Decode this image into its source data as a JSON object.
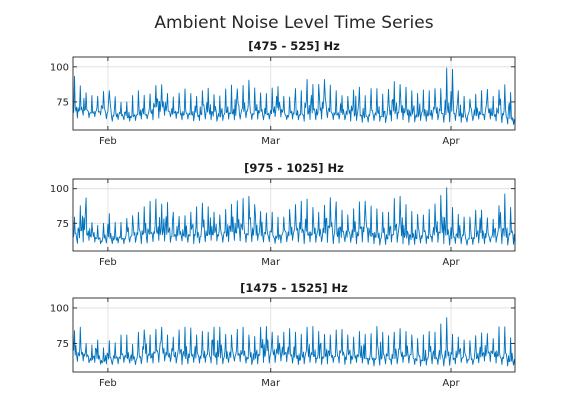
{
  "title": "Ambient Noise Level Time Series",
  "chart_data": [
    {
      "type": "line",
      "title": "[475 - 525]  Hz",
      "xlim": [
        "2021-01-26",
        "2021-04-12"
      ],
      "ylim": [
        55,
        107
      ],
      "yticks": [
        75,
        100
      ],
      "xticks": [
        {
          "date": "2021-02-01",
          "label": "Feb"
        },
        {
          "date": "2021-03-01",
          "label": "Mar"
        },
        {
          "date": "2021-04-01",
          "label": "Apr"
        }
      ],
      "grid": true,
      "series": [
        {
          "color": "#0072bd",
          "x": [
            "2021-01-26",
            "2021-01-27",
            "2021-01-28",
            "2021-01-29",
            "2021-01-30",
            "2021-01-31",
            "2021-02-01",
            "2021-02-02",
            "2021-02-03",
            "2021-02-04",
            "2021-02-05",
            "2021-02-06",
            "2021-02-07",
            "2021-02-08",
            "2021-02-09",
            "2021-02-10",
            "2021-02-11",
            "2021-02-12",
            "2021-02-13",
            "2021-02-14",
            "2021-02-15",
            "2021-02-16",
            "2021-02-17",
            "2021-02-18",
            "2021-02-19",
            "2021-02-20",
            "2021-02-21",
            "2021-02-22",
            "2021-02-23",
            "2021-02-24",
            "2021-02-25",
            "2021-02-26",
            "2021-02-27",
            "2021-02-28",
            "2021-03-01",
            "2021-03-02",
            "2021-03-03",
            "2021-03-04",
            "2021-03-05",
            "2021-03-06",
            "2021-03-07",
            "2021-03-08",
            "2021-03-09",
            "2021-03-10",
            "2021-03-11",
            "2021-03-12",
            "2021-03-13",
            "2021-03-14",
            "2021-03-15",
            "2021-03-16",
            "2021-03-17",
            "2021-03-18",
            "2021-03-19",
            "2021-03-20",
            "2021-03-21",
            "2021-03-22",
            "2021-03-23",
            "2021-03-24",
            "2021-03-25",
            "2021-03-26",
            "2021-03-27",
            "2021-03-28",
            "2021-03-29",
            "2021-03-30",
            "2021-03-31",
            "2021-04-01",
            "2021-04-02",
            "2021-04-03",
            "2021-04-04",
            "2021-04-05",
            "2021-04-06",
            "2021-04-07",
            "2021-04-08",
            "2021-04-09",
            "2021-04-10",
            "2021-04-11",
            "2021-04-12"
          ],
          "min": [
            62,
            64,
            66,
            63,
            65,
            66,
            62,
            61,
            63,
            62,
            61,
            62,
            63,
            63,
            62,
            64,
            66,
            64,
            63,
            62,
            63,
            61,
            62,
            63,
            62,
            61,
            62,
            63,
            62,
            63,
            64,
            62,
            63,
            62,
            63,
            65,
            64,
            62,
            63,
            62,
            61,
            63,
            62,
            63,
            64,
            62,
            63,
            62,
            61,
            62,
            60,
            61,
            62,
            61,
            60,
            62,
            63,
            62,
            60,
            61,
            62,
            61,
            63,
            62,
            60,
            61,
            62,
            60,
            61,
            62,
            63,
            62,
            63,
            61,
            60,
            59,
            59
          ],
          "max": [
            95,
            88,
            82,
            80,
            78,
            82,
            84,
            80,
            75,
            74,
            78,
            84,
            80,
            79,
            86,
            89,
            82,
            78,
            80,
            85,
            82,
            78,
            82,
            86,
            81,
            78,
            83,
            88,
            84,
            85,
            92,
            86,
            82,
            80,
            84,
            88,
            80,
            76,
            86,
            80,
            92,
            88,
            86,
            92,
            88,
            84,
            80,
            78,
            82,
            88,
            78,
            84,
            86,
            80,
            82,
            90,
            88,
            86,
            84,
            80,
            84,
            82,
            86,
            80,
            98,
            103,
            84,
            80,
            76,
            80,
            82,
            86,
            78,
            82,
            88,
            85,
            72
          ]
        }
      ]
    },
    {
      "type": "line",
      "title": "[975 - 1025]  Hz",
      "xlim": [
        "2021-01-26",
        "2021-04-12"
      ],
      "ylim": [
        55,
        107
      ],
      "yticks": [
        75,
        100
      ],
      "xticks": [
        {
          "date": "2021-02-01",
          "label": "Feb"
        },
        {
          "date": "2021-03-01",
          "label": "Mar"
        },
        {
          "date": "2021-04-01",
          "label": "Apr"
        }
      ],
      "grid": true,
      "series": [
        {
          "color": "#0072bd",
          "x": [
            "2021-01-26",
            "2021-01-27",
            "2021-01-28",
            "2021-01-29",
            "2021-01-30",
            "2021-01-31",
            "2021-02-01",
            "2021-02-02",
            "2021-02-03",
            "2021-02-04",
            "2021-02-05",
            "2021-02-06",
            "2021-02-07",
            "2021-02-08",
            "2021-02-09",
            "2021-02-10",
            "2021-02-11",
            "2021-02-12",
            "2021-02-13",
            "2021-02-14",
            "2021-02-15",
            "2021-02-16",
            "2021-02-17",
            "2021-02-18",
            "2021-02-19",
            "2021-02-20",
            "2021-02-21",
            "2021-02-22",
            "2021-02-23",
            "2021-02-24",
            "2021-02-25",
            "2021-02-26",
            "2021-02-27",
            "2021-02-28",
            "2021-03-01",
            "2021-03-02",
            "2021-03-03",
            "2021-03-04",
            "2021-03-05",
            "2021-03-06",
            "2021-03-07",
            "2021-03-08",
            "2021-03-09",
            "2021-03-10",
            "2021-03-11",
            "2021-03-12",
            "2021-03-13",
            "2021-03-14",
            "2021-03-15",
            "2021-03-16",
            "2021-03-17",
            "2021-03-18",
            "2021-03-19",
            "2021-03-20",
            "2021-03-21",
            "2021-03-22",
            "2021-03-23",
            "2021-03-24",
            "2021-03-25",
            "2021-03-26",
            "2021-03-27",
            "2021-03-28",
            "2021-03-29",
            "2021-03-30",
            "2021-03-31",
            "2021-04-01",
            "2021-04-02",
            "2021-04-03",
            "2021-04-04",
            "2021-04-05",
            "2021-04-06",
            "2021-04-07",
            "2021-04-08",
            "2021-04-09",
            "2021-04-10",
            "2021-04-11",
            "2021-04-12"
          ],
          "min": [
            62,
            60,
            62,
            63,
            61,
            60,
            61,
            60,
            61,
            60,
            62,
            61,
            60,
            61,
            62,
            63,
            62,
            61,
            63,
            62,
            61,
            60,
            61,
            62,
            63,
            62,
            61,
            62,
            63,
            62,
            61,
            62,
            63,
            61,
            62,
            60,
            61,
            62,
            63,
            61,
            60,
            62,
            61,
            62,
            61,
            60,
            61,
            62,
            61,
            60,
            62,
            61,
            60,
            59,
            60,
            62,
            61,
            60,
            59,
            60,
            61,
            60,
            62,
            61,
            60,
            59,
            61,
            60,
            59,
            60,
            61,
            60,
            62,
            61,
            60,
            59,
            60
          ],
          "max": [
            78,
            84,
            99,
            76,
            74,
            72,
            84,
            76,
            75,
            78,
            80,
            82,
            86,
            90,
            94,
            88,
            92,
            84,
            80,
            80,
            82,
            86,
            90,
            88,
            84,
            80,
            84,
            88,
            91,
            92,
            96,
            90,
            84,
            82,
            84,
            80,
            78,
            84,
            88,
            90,
            94,
            88,
            82,
            86,
            94,
            92,
            86,
            80,
            84,
            90,
            92,
            88,
            86,
            84,
            80,
            92,
            96,
            90,
            84,
            82,
            80,
            84,
            88,
            92,
            105,
            88,
            82,
            80,
            78,
            84,
            86,
            80,
            76,
            84,
            99,
            88,
            82
          ]
        }
      ]
    },
    {
      "type": "line",
      "title": "[1475 - 1525]  Hz",
      "xlim": [
        "2021-01-26",
        "2021-04-12"
      ],
      "ylim": [
        55,
        107
      ],
      "yticks": [
        75,
        100
      ],
      "xticks": [
        {
          "date": "2021-02-01",
          "label": "Feb"
        },
        {
          "date": "2021-03-01",
          "label": "Mar"
        },
        {
          "date": "2021-04-01",
          "label": "Apr"
        }
      ],
      "grid": true,
      "series": [
        {
          "color": "#0072bd",
          "x": [
            "2021-01-26",
            "2021-01-27",
            "2021-01-28",
            "2021-01-29",
            "2021-01-30",
            "2021-01-31",
            "2021-02-01",
            "2021-02-02",
            "2021-02-03",
            "2021-02-04",
            "2021-02-05",
            "2021-02-06",
            "2021-02-07",
            "2021-02-08",
            "2021-02-09",
            "2021-02-10",
            "2021-02-11",
            "2021-02-12",
            "2021-02-13",
            "2021-02-14",
            "2021-02-15",
            "2021-02-16",
            "2021-02-17",
            "2021-02-18",
            "2021-02-19",
            "2021-02-20",
            "2021-02-21",
            "2021-02-22",
            "2021-02-23",
            "2021-02-24",
            "2021-02-25",
            "2021-02-26",
            "2021-02-27",
            "2021-02-28",
            "2021-03-01",
            "2021-03-02",
            "2021-03-03",
            "2021-03-04",
            "2021-03-05",
            "2021-03-06",
            "2021-03-07",
            "2021-03-08",
            "2021-03-09",
            "2021-03-10",
            "2021-03-11",
            "2021-03-12",
            "2021-03-13",
            "2021-03-14",
            "2021-03-15",
            "2021-03-16",
            "2021-03-17",
            "2021-03-18",
            "2021-03-19",
            "2021-03-20",
            "2021-03-21",
            "2021-03-22",
            "2021-03-23",
            "2021-03-24",
            "2021-03-25",
            "2021-03-26",
            "2021-03-27",
            "2021-03-28",
            "2021-03-29",
            "2021-03-30",
            "2021-03-31",
            "2021-04-01",
            "2021-04-02",
            "2021-04-03",
            "2021-04-04",
            "2021-04-05",
            "2021-04-06",
            "2021-04-07",
            "2021-04-08",
            "2021-04-09",
            "2021-04-10",
            "2021-04-11",
            "2021-04-12"
          ],
          "min": [
            64,
            62,
            63,
            61,
            62,
            60,
            61,
            60,
            61,
            62,
            61,
            60,
            61,
            62,
            61,
            62,
            63,
            62,
            61,
            60,
            61,
            62,
            61,
            62,
            61,
            60,
            61,
            62,
            63,
            62,
            61,
            60,
            61,
            62,
            61,
            62,
            63,
            62,
            61,
            60,
            61,
            62,
            61,
            60,
            61,
            62,
            61,
            60,
            61,
            62,
            61,
            60,
            59,
            60,
            61,
            60,
            61,
            62,
            61,
            60,
            59,
            60,
            61,
            60,
            59,
            60,
            61,
            62,
            61,
            60,
            62,
            63,
            62,
            61,
            60,
            59,
            60
          ],
          "max": [
            82,
            90,
            76,
            72,
            80,
            70,
            78,
            74,
            80,
            84,
            72,
            82,
            86,
            80,
            84,
            88,
            82,
            78,
            84,
            86,
            88,
            80,
            84,
            82,
            86,
            88,
            82,
            80,
            84,
            88,
            82,
            78,
            86,
            88,
            84,
            80,
            82,
            86,
            84,
            80,
            86,
            88,
            84,
            82,
            80,
            84,
            86,
            82,
            78,
            84,
            82,
            80,
            88,
            84,
            80,
            82,
            86,
            84,
            82,
            78,
            80,
            84,
            82,
            86,
            97,
            82,
            80,
            78,
            76,
            80,
            82,
            84,
            76,
            86,
            89,
            80,
            76
          ]
        }
      ]
    }
  ]
}
